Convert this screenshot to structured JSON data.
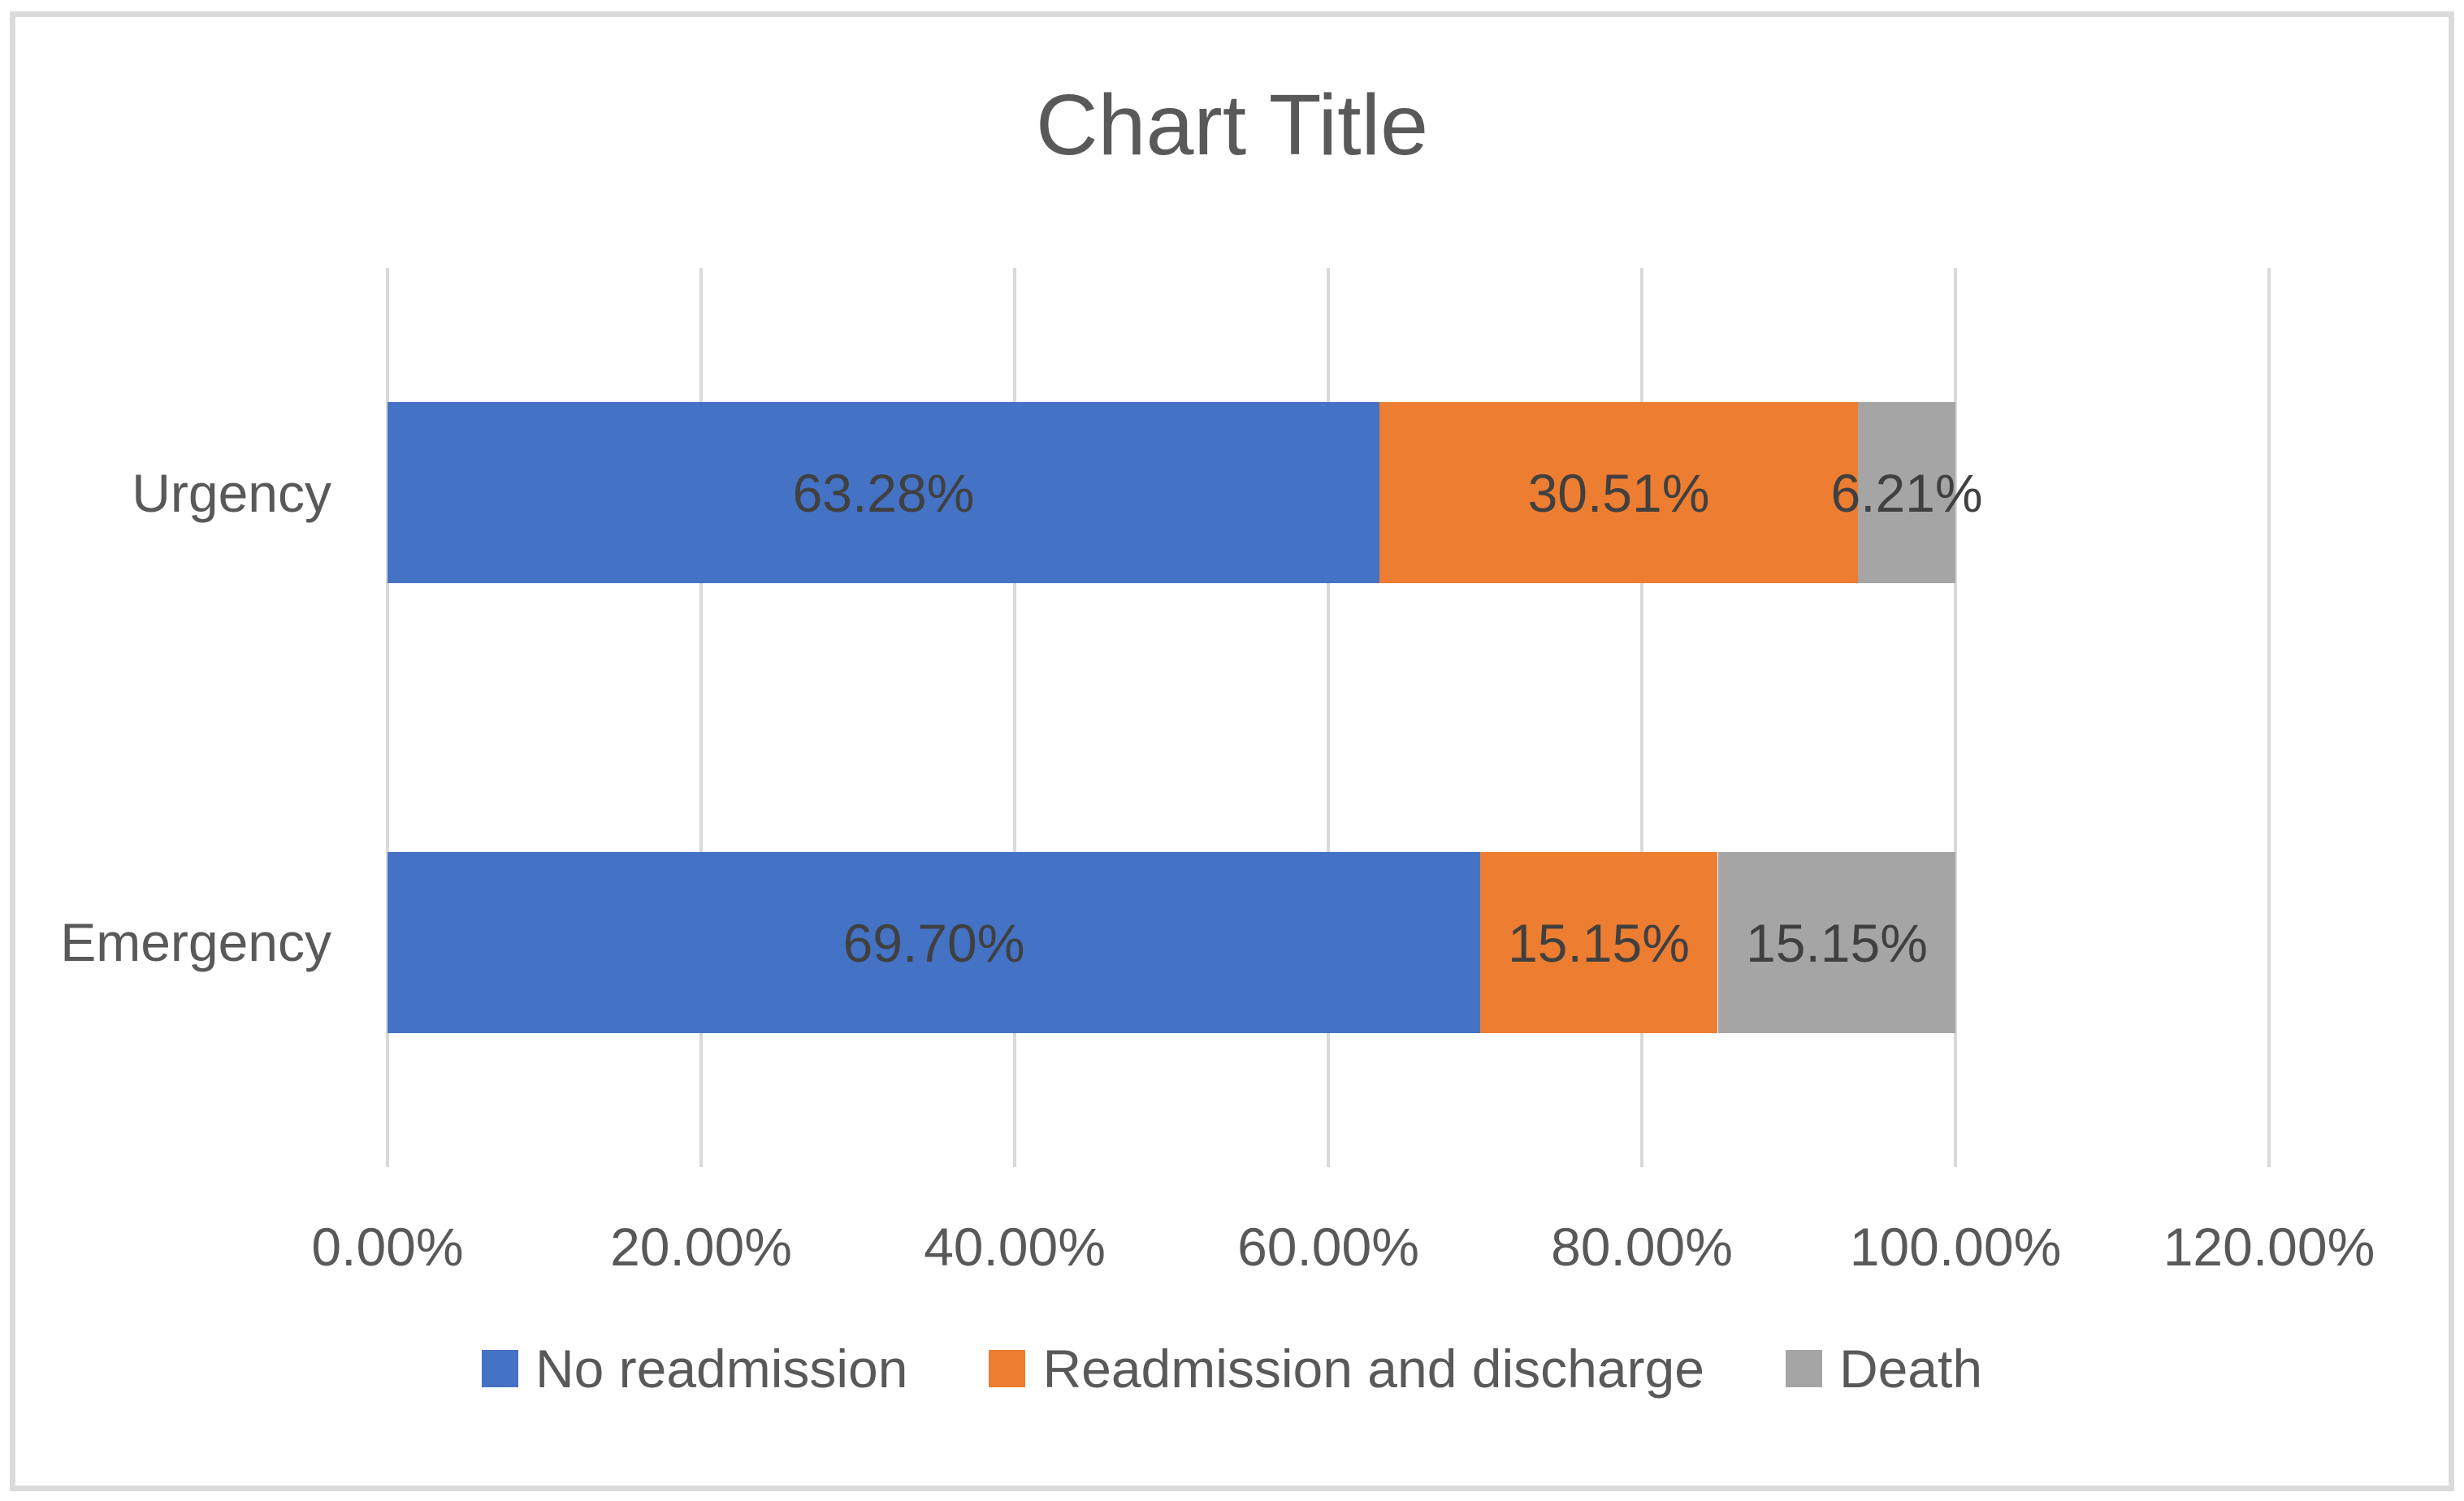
{
  "chart_data": {
    "type": "bar",
    "orientation": "horizontal",
    "stacked": true,
    "title": "Chart Title",
    "categories": [
      "Urgency",
      "Emergency"
    ],
    "series": [
      {
        "name": "No readmission",
        "color": "#4472C4",
        "values": [
          63.28,
          69.7
        ],
        "data_labels": [
          "63.28%",
          "69.70%"
        ]
      },
      {
        "name": "Readmission and discharge",
        "color": "#ED7D31",
        "values": [
          30.51,
          15.15
        ],
        "data_labels": [
          "30.51%",
          "15.15%"
        ]
      },
      {
        "name": "Death",
        "color": "#A5A5A5",
        "values": [
          6.21,
          15.15
        ],
        "data_labels": [
          "6.21%",
          "15.15%"
        ]
      }
    ],
    "x_axis": {
      "min": 0,
      "max": 120,
      "ticks": [
        0,
        20,
        40,
        60,
        80,
        100,
        120
      ],
      "tick_labels": [
        "0.00%",
        "20.00%",
        "40.00%",
        "60.00%",
        "80.00%",
        "100.00%",
        "120.00%"
      ]
    },
    "grid": true,
    "legend_position": "bottom",
    "colors": {
      "title_text": "#595959",
      "axis_text": "#595959",
      "data_label_text": "#404040",
      "gridline": "#D9D9D9",
      "chart_border": "#D9D9D9",
      "background": "#FFFFFF"
    }
  }
}
